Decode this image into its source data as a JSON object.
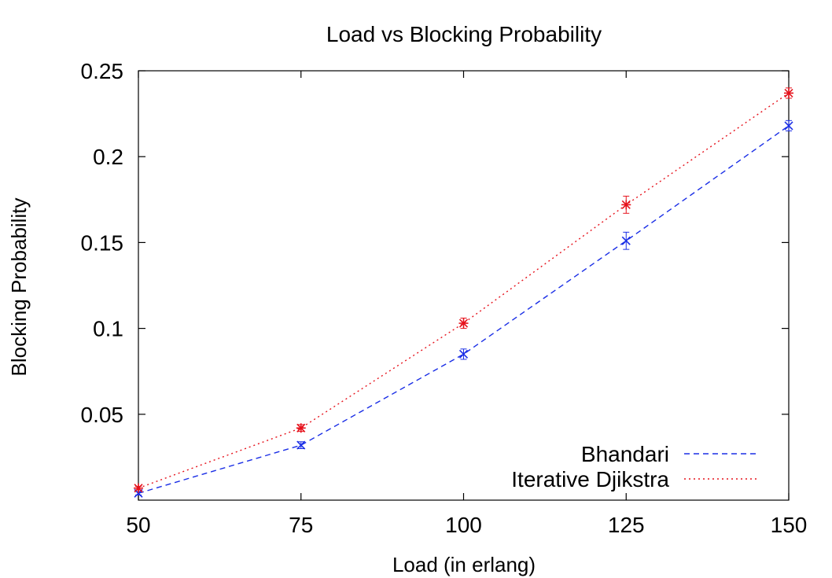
{
  "chart_data": {
    "type": "line",
    "title": "Load vs Blocking Probability",
    "xlabel": "Load (in erlang)",
    "ylabel": "Blocking Probability",
    "x": [
      50,
      75,
      100,
      125,
      150
    ],
    "xlim": [
      50,
      150
    ],
    "ylim": [
      0,
      0.25
    ],
    "xticks": [
      50,
      75,
      100,
      125,
      150
    ],
    "yticks": [
      0.05,
      0.1,
      0.15,
      0.2,
      0.25
    ],
    "ytick_labels": [
      "0.05",
      "0.1",
      "0.15",
      "0.2",
      "0.25"
    ],
    "grid": false,
    "legend_position": "bottom-right",
    "series": [
      {
        "name": "Bhandari",
        "values": [
          0.004,
          0.032,
          0.085,
          0.151,
          0.218
        ],
        "error": [
          0.001,
          0.002,
          0.003,
          0.005,
          0.003
        ],
        "color": "#1a2ee6",
        "marker": "x",
        "line_style": "dashed"
      },
      {
        "name": "Iterative Djikstra",
        "values": [
          0.007,
          0.042,
          0.103,
          0.172,
          0.237
        ],
        "error": [
          0.001,
          0.002,
          0.003,
          0.005,
          0.003
        ],
        "color": "#e6121c",
        "marker": "star",
        "line_style": "dotted"
      }
    ]
  }
}
